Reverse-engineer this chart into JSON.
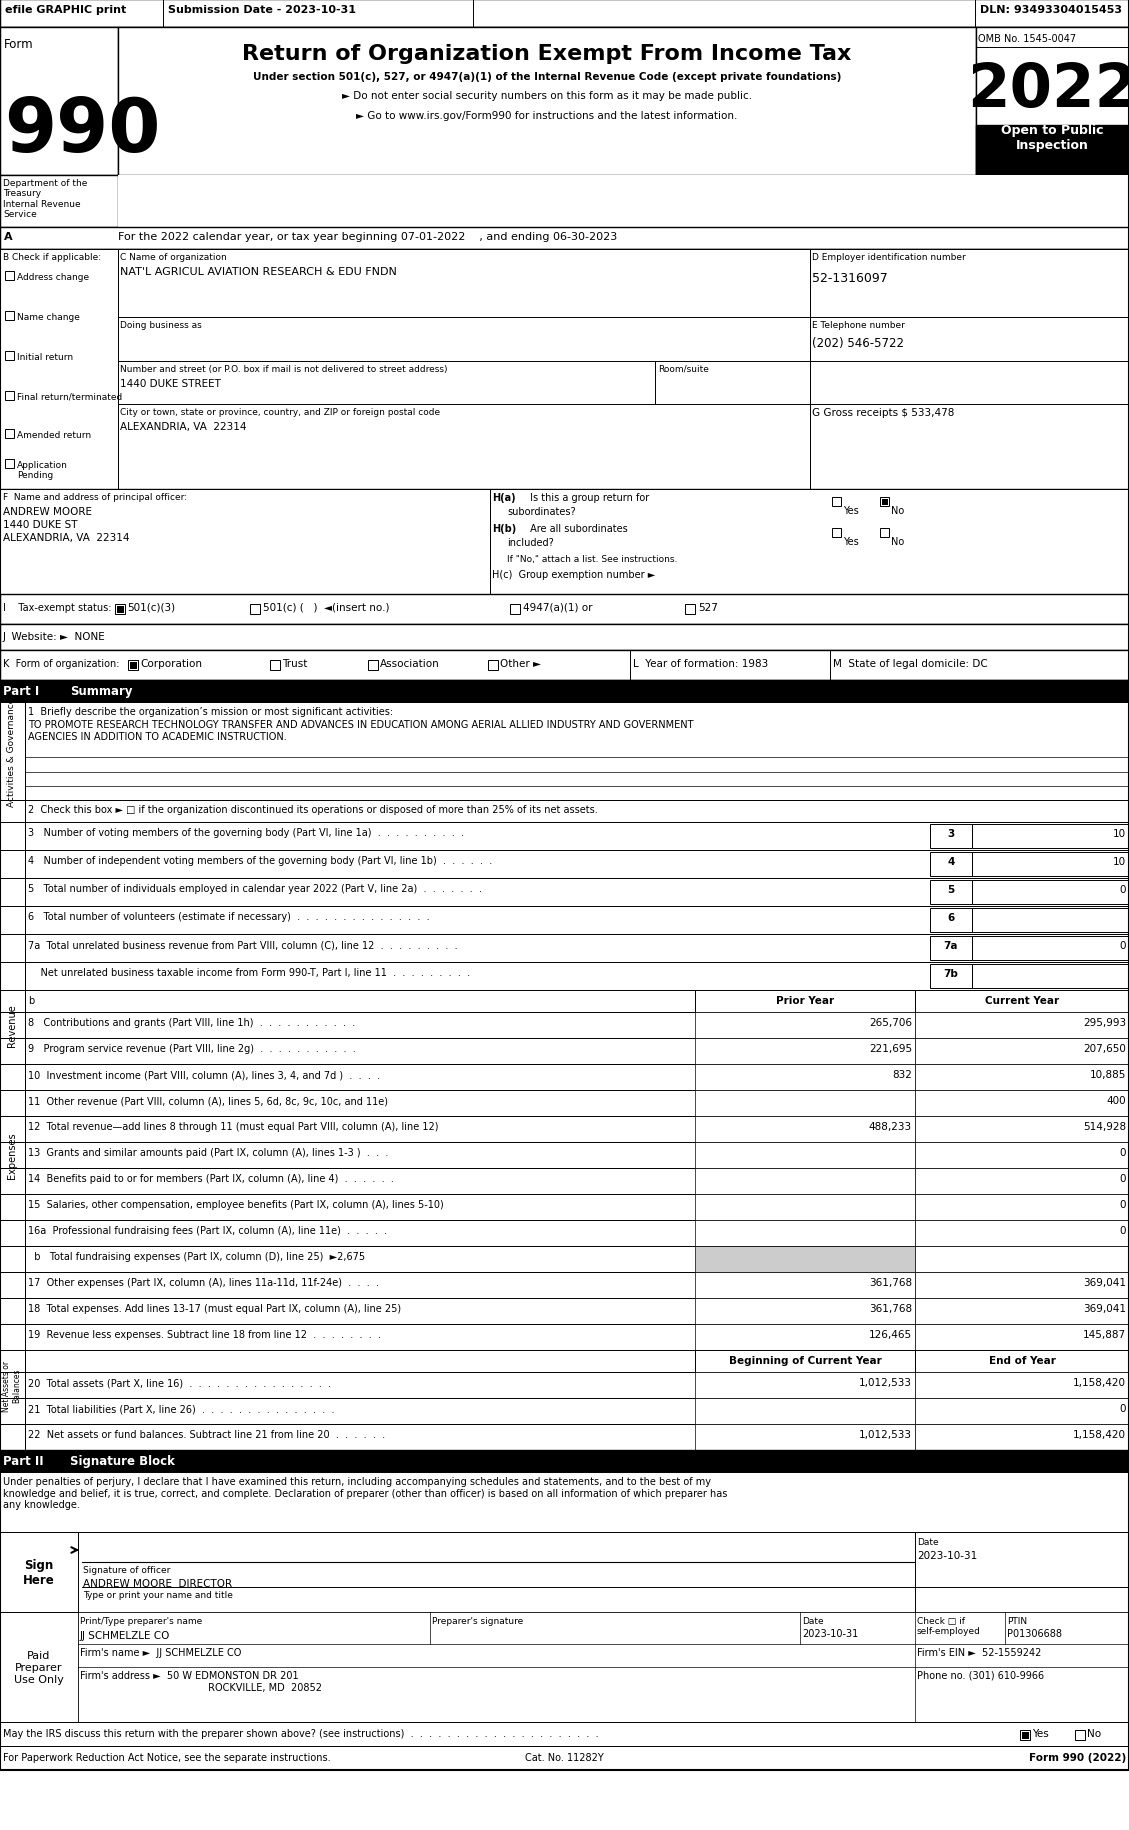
{
  "title": "Return of Organization Exempt From Income Tax",
  "subtitle_under": "Under section 501(c), 527, or 4947(a)(1) of the Internal Revenue Code (except private foundations)",
  "subtitle_no_ssn": "► Do not enter social security numbers on this form as it may be made public.",
  "subtitle_goto": "► Go to www.irs.gov/Form990 for instructions and the latest information.",
  "efile_text": "efile GRAPHIC print",
  "submission_date": "Submission Date - 2023-10-31",
  "dln": "DLN: 93493304015453",
  "omb": "OMB No. 1545-0047",
  "year": "2022",
  "open_to_public": "Open to Public\nInspection",
  "dept": "Department of the\nTreasury\nInternal Revenue\nService",
  "form_number": "990",
  "tax_year_line": "For the 2022 calendar year, or tax year beginning 07-01-2022    , and ending 06-30-2023",
  "b_check": "B Check if applicable:",
  "checkboxes_b": [
    "Address change",
    "Name change",
    "Initial return",
    "Final return/terminated",
    "Amended return",
    "Application\nPending"
  ],
  "c_label": "C Name of organization",
  "org_name": "NAT'L AGRICUL AVIATION RESEARCH & EDU FNDN",
  "dba_label": "Doing business as",
  "street_label": "Number and street (or P.O. box if mail is not delivered to street address)",
  "street": "1440 DUKE STREET",
  "room_label": "Room/suite",
  "city_label": "City or town, state or province, country, and ZIP or foreign postal code",
  "city": "ALEXANDRIA, VA  22314",
  "d_label": "D Employer identification number",
  "ein": "52-1316097",
  "e_label": "E Telephone number",
  "phone": "(202) 546-5722",
  "g_label": "G Gross receipts $ 533,478",
  "f_label": "F  Name and address of principal officer:",
  "officer_name": "ANDREW MOORE",
  "officer_addr1": "1440 DUKE ST",
  "officer_addr2": "ALEXANDRIA, VA  22314",
  "ha_text": "H(a)  Is this a group return for",
  "ha_sub": "subordinates?",
  "hb_text": "H(b)  Are all subordinates",
  "hb_sub": "included?",
  "hb_note": "If \"No,\" attach a list. See instructions.",
  "hc_text": "H(c)  Group exemption number ►",
  "i_label": "I    Tax-exempt status:",
  "j_label": "J  Website: ►  NONE",
  "k_label": "K  Form of organization:",
  "l_label": "L  Year of formation: 1983",
  "m_label": "M  State of legal domicile: DC",
  "part1_label": "Part I",
  "part1_title": "Summary",
  "line1_label": "1  Briefly describe the organization’s mission or most significant activities:",
  "mission": "TO PROMOTE RESEARCH TECHNOLOGY TRANSFER AND ADVANCES IN EDUCATION AMONG AERIAL ALLIED INDUSTRY AND GOVERNMENT\nAGENCIES IN ADDITION TO ACADEMIC INSTRUCTION.",
  "line2_label": "2  Check this box ► □ if the organization discontinued its operations or disposed of more than 25% of its net assets.",
  "line3_label": "3   Number of voting members of the governing body (Part VI, line 1a)  .  .  .  .  .  .  .  .  .  .",
  "line3_num": "3",
  "line3_val": "10",
  "line4_label": "4   Number of independent voting members of the governing body (Part VI, line 1b)  .  .  .  .  .  .",
  "line4_num": "4",
  "line4_val": "10",
  "line5_label": "5   Total number of individuals employed in calendar year 2022 (Part V, line 2a)  .  .  .  .  .  .  .",
  "line5_num": "5",
  "line5_val": "0",
  "line6_label": "6   Total number of volunteers (estimate if necessary)  .  .  .  .  .  .  .  .  .  .  .  .  .  .  .",
  "line6_num": "6",
  "line6_val": "",
  "line7a_label": "7a  Total unrelated business revenue from Part VIII, column (C), line 12  .  .  .  .  .  .  .  .  .",
  "line7a_num": "7a",
  "line7a_val": "0",
  "line7b_label": "    Net unrelated business taxable income from Form 990-T, Part I, line 11  .  .  .  .  .  .  .  .  .",
  "line7b_num": "7b",
  "line7b_val": "",
  "col_prior": "Prior Year",
  "col_current": "Current Year",
  "line8_label": "8   Contributions and grants (Part VIII, line 1h)  .  .  .  .  .  .  .  .  .  .  .",
  "line8_prior": "265,706",
  "line8_current": "295,993",
  "line9_label": "9   Program service revenue (Part VIII, line 2g)  .  .  .  .  .  .  .  .  .  .  .",
  "line9_prior": "221,695",
  "line9_current": "207,650",
  "line10_label": "10  Investment income (Part VIII, column (A), lines 3, 4, and 7d )  .  .  .  .",
  "line10_prior": "832",
  "line10_current": "10,885",
  "line11_label": "11  Other revenue (Part VIII, column (A), lines 5, 6d, 8c, 9c, 10c, and 11e)",
  "line11_prior": "",
  "line11_current": "400",
  "line12_label": "12  Total revenue—add lines 8 through 11 (must equal Part VIII, column (A), line 12)",
  "line12_prior": "488,233",
  "line12_current": "514,928",
  "line13_label": "13  Grants and similar amounts paid (Part IX, column (A), lines 1-3 )  .  .  .",
  "line13_prior": "",
  "line13_current": "0",
  "line14_label": "14  Benefits paid to or for members (Part IX, column (A), line 4)  .  .  .  .  .  .",
  "line14_prior": "",
  "line14_current": "0",
  "line15_label": "15  Salaries, other compensation, employee benefits (Part IX, column (A), lines 5-10)",
  "line15_prior": "",
  "line15_current": "0",
  "line16a_label": "16a  Professional fundraising fees (Part IX, column (A), line 11e)  .  .  .  .  .",
  "line16a_prior": "",
  "line16a_current": "0",
  "line16b_label": "  b   Total fundraising expenses (Part IX, column (D), line 25)  ►2,675",
  "line17_label": "17  Other expenses (Part IX, column (A), lines 11a-11d, 11f-24e)  .  .  .  .",
  "line17_prior": "361,768",
  "line17_current": "369,041",
  "line18_label": "18  Total expenses. Add lines 13-17 (must equal Part IX, column (A), line 25)",
  "line18_prior": "361,768",
  "line18_current": "369,041",
  "line19_label": "19  Revenue less expenses. Subtract line 18 from line 12  .  .  .  .  .  .  .  .",
  "line19_prior": "126,465",
  "line19_current": "145,887",
  "col_begin": "Beginning of Current Year",
  "col_end": "End of Year",
  "line20_label": "20  Total assets (Part X, line 16)  .  .  .  .  .  .  .  .  .  .  .  .  .  .  .  .",
  "line20_begin": "1,012,533",
  "line20_end": "1,158,420",
  "line21_label": "21  Total liabilities (Part X, line 26)  .  .  .  .  .  .  .  .  .  .  .  .  .  .  .",
  "line21_begin": "",
  "line21_end": "0",
  "line22_label": "22  Net assets or fund balances. Subtract line 21 from line 20  .  .  .  .  .  .",
  "line22_begin": "1,012,533",
  "line22_end": "1,158,420",
  "part2_label": "Part II",
  "part2_title": "Signature Block",
  "sig_declaration": "Under penalties of perjury, I declare that I have examined this return, including accompanying schedules and statements, and to the best of my\nknowledge and belief, it is true, correct, and complete. Declaration of preparer (other than officer) is based on all information of which preparer has\nany knowledge.",
  "sign_here": "Sign\nHere",
  "sig_date_val": "2023-10-31",
  "sig_officer_name": "ANDREW MOORE  DIRECTOR",
  "sig_officer_title": "Type or print your name and title",
  "paid_preparer": "Paid\nPreparer\nUse Only",
  "prep_name_label": "Print/Type preparer's name",
  "prep_sig_label": "Preparer's signature",
  "prep_date_label": "Date",
  "prep_date_val": "2023-10-31",
  "prep_check_label": "Check □ if\nself-employed",
  "ptin_label": "PTIN",
  "prep_name_val": "JJ SCHMELZLE CO",
  "prep_ptin_val": "P01306688",
  "firm_name_label": "Firm's name ►",
  "firm_name_val": "JJ SCHMELZLE CO",
  "firm_ein_label": "Firm's EIN ►",
  "firm_ein_val": "52-1559242",
  "firm_addr_label": "Firm's address ►",
  "firm_addr_val": "50 W EDMONSTON DR 201",
  "firm_city_val": "ROCKVILLE, MD  20852",
  "firm_phone_label": "Phone no.",
  "firm_phone_val": "(301) 610-9966",
  "discuss_label": "May the IRS discuss this return with the preparer shown above? (see instructions)  .  .  .  .  .  .  .  .  .  .  .  .  .  .  .  .  .  .  .  .  .",
  "paperwork_label": "For Paperwork Reduction Act Notice, see the separate instructions.",
  "cat_no": "Cat. No. 11282Y",
  "form_footer": "Form 990 (2022)",
  "bg_color": "#ffffff",
  "gray_bg": "#cccccc"
}
